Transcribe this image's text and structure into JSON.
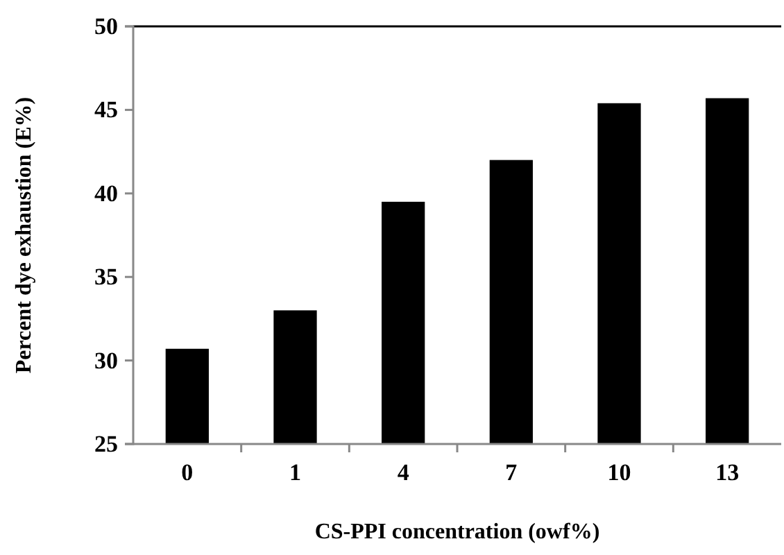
{
  "chart_data": {
    "type": "bar",
    "xlabel": "CS-PPI concentration (owf%)",
    "ylabel": "Percent dye exhaustion (E%)",
    "categories": [
      "0",
      "1",
      "4",
      "7",
      "10",
      "13"
    ],
    "values": [
      30.7,
      33.0,
      39.5,
      42.0,
      45.4,
      45.7
    ],
    "color": "#000000",
    "ylim": [
      25,
      50
    ],
    "yticks": [
      25,
      30,
      35,
      40,
      45,
      50
    ],
    "grid": false
  }
}
